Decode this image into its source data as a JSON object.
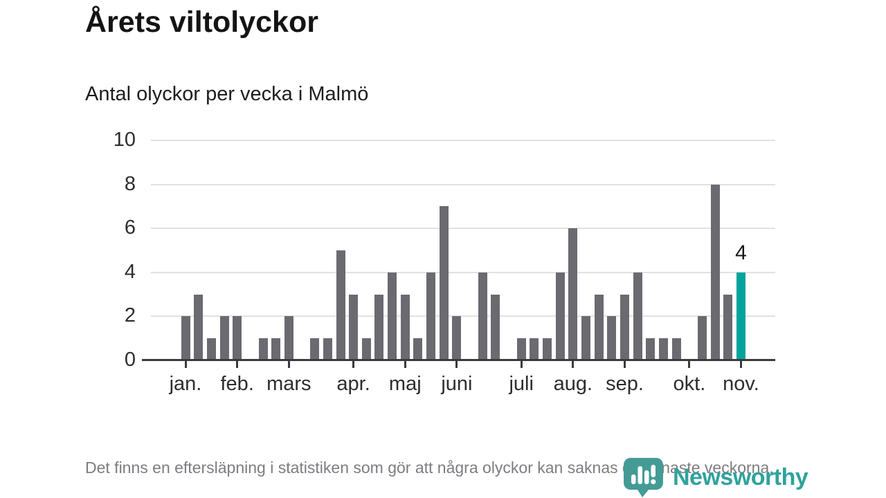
{
  "header": {
    "title": "Årets viltolyckor",
    "subtitle": "Antal olyckor per vecka i Malmö"
  },
  "chart_data": {
    "type": "bar",
    "title": "Årets viltolyckor",
    "subtitle": "Antal olyckor per vecka i Malmö",
    "x_unit": "vecka",
    "values": [
      2,
      3,
      1,
      2,
      2,
      0,
      1,
      1,
      2,
      0,
      1,
      1,
      5,
      3,
      1,
      3,
      4,
      3,
      1,
      4,
      7,
      2,
      0,
      4,
      3,
      0,
      1,
      1,
      1,
      4,
      6,
      2,
      3,
      2,
      3,
      4,
      1,
      1,
      1,
      0,
      2,
      8,
      3,
      4
    ],
    "highlight_index": 43,
    "highlight_label": "4",
    "ylim": [
      0,
      10
    ],
    "yticks": [
      0,
      2,
      4,
      6,
      8,
      10
    ],
    "grid": true,
    "month_ticks": [
      {
        "label": "jan.",
        "week": 1
      },
      {
        "label": "feb.",
        "week": 5
      },
      {
        "label": "mars",
        "week": 9
      },
      {
        "label": "apr.",
        "week": 14
      },
      {
        "label": "maj",
        "week": 18
      },
      {
        "label": "juni",
        "week": 22
      },
      {
        "label": "juli",
        "week": 27
      },
      {
        "label": "aug.",
        "week": 31
      },
      {
        "label": "sep.",
        "week": 35
      },
      {
        "label": "okt.",
        "week": 40
      },
      {
        "label": "nov.",
        "week": 44
      }
    ],
    "colors": {
      "bar": "#6A6A70",
      "highlight": "#00A49C",
      "grid": "#E1E1E1",
      "axis": "#3A3A3C"
    }
  },
  "footer": {
    "note": "Det finns en eftersläpning i statistiken som gör att några olyckor kan saknas de senaste veckorna."
  },
  "logo": {
    "brand": "Newsworthy",
    "color": "#2FA29C",
    "pin_color": "#449B96",
    "icon": "newsworthy-pin-barchart-icon"
  }
}
